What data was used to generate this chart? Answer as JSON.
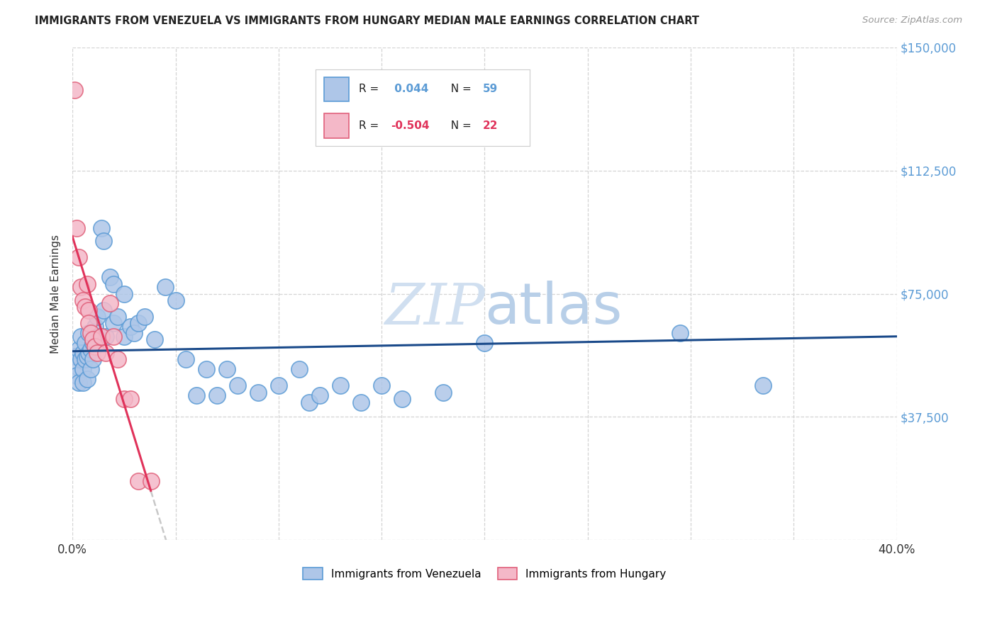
{
  "title": "IMMIGRANTS FROM VENEZUELA VS IMMIGRANTS FROM HUNGARY MEDIAN MALE EARNINGS CORRELATION CHART",
  "source": "Source: ZipAtlas.com",
  "ylabel": "Median Male Earnings",
  "xlim": [
    0.0,
    0.4
  ],
  "ylim": [
    0,
    150000
  ],
  "yticks": [
    0,
    37500,
    75000,
    112500,
    150000
  ],
  "ytick_labels": [
    "",
    "$37,500",
    "$75,000",
    "$112,500",
    "$150,000"
  ],
  "xticks": [
    0.0,
    0.05,
    0.1,
    0.15,
    0.2,
    0.25,
    0.3,
    0.35,
    0.4
  ],
  "xtick_labels": [
    "0.0%",
    "",
    "",
    "",
    "",
    "",
    "",
    "",
    "40.0%"
  ],
  "background_color": "#ffffff",
  "grid_color": "#d0d0d0",
  "venezuela_color": "#aec6e8",
  "venezuela_edge_color": "#5b9bd5",
  "hungary_color": "#f4b8c8",
  "hungary_edge_color": "#e0607a",
  "trend_venezuela_color": "#1a4a8a",
  "trend_hungary_color": "#e0325a",
  "trend_hungary_dashed_color": "#c8c8c8",
  "watermark_color": "#d0dff0",
  "legend_R_color": "#000000",
  "legend_val_ven_color": "#5b9bd5",
  "legend_val_hun_color": "#e0325a",
  "venezuela_x": [
    0.001,
    0.002,
    0.002,
    0.003,
    0.003,
    0.004,
    0.004,
    0.005,
    0.005,
    0.005,
    0.006,
    0.006,
    0.007,
    0.007,
    0.008,
    0.008,
    0.009,
    0.009,
    0.01,
    0.01,
    0.011,
    0.012,
    0.013,
    0.014,
    0.015,
    0.015,
    0.016,
    0.018,
    0.02,
    0.02,
    0.022,
    0.025,
    0.025,
    0.028,
    0.03,
    0.032,
    0.035,
    0.04,
    0.045,
    0.05,
    0.055,
    0.06,
    0.065,
    0.07,
    0.075,
    0.08,
    0.09,
    0.1,
    0.11,
    0.115,
    0.12,
    0.13,
    0.14,
    0.15,
    0.16,
    0.18,
    0.2,
    0.295,
    0.335
  ],
  "venezuela_y": [
    56000,
    53000,
    50000,
    58000,
    48000,
    62000,
    55000,
    57000,
    52000,
    48000,
    60000,
    55000,
    56000,
    49000,
    63000,
    57000,
    58000,
    52000,
    60000,
    55000,
    65000,
    68000,
    62000,
    95000,
    91000,
    70000,
    62000,
    80000,
    78000,
    66000,
    68000,
    75000,
    62000,
    65000,
    63000,
    66000,
    68000,
    61000,
    77000,
    73000,
    55000,
    44000,
    52000,
    44000,
    52000,
    47000,
    45000,
    47000,
    52000,
    42000,
    44000,
    47000,
    42000,
    47000,
    43000,
    45000,
    60000,
    63000,
    47000
  ],
  "hungary_x": [
    0.001,
    0.002,
    0.003,
    0.004,
    0.005,
    0.006,
    0.007,
    0.008,
    0.008,
    0.009,
    0.01,
    0.011,
    0.012,
    0.014,
    0.016,
    0.018,
    0.02,
    0.022,
    0.025,
    0.028,
    0.032,
    0.038
  ],
  "hungary_y": [
    137000,
    95000,
    86000,
    77000,
    73000,
    71000,
    78000,
    70000,
    66000,
    63000,
    61000,
    59000,
    57000,
    62000,
    57000,
    72000,
    62000,
    55000,
    43000,
    43000,
    18000,
    18000
  ]
}
